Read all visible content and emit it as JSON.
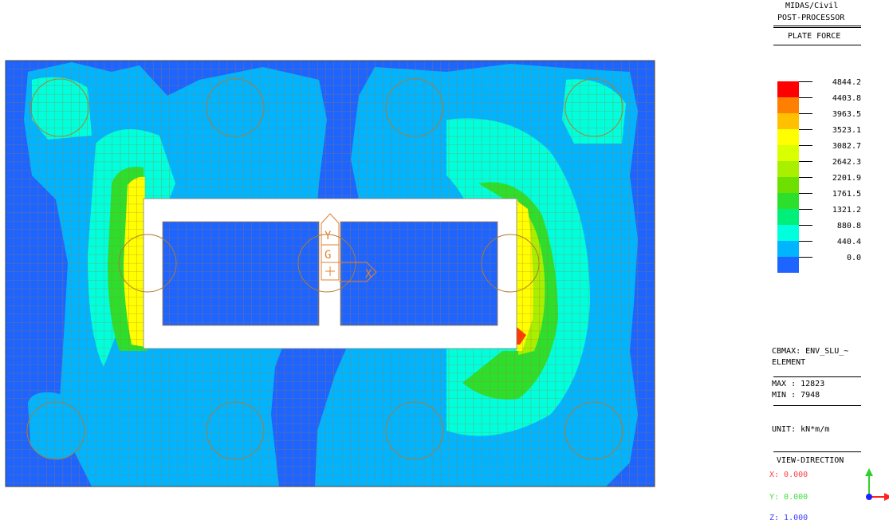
{
  "app": {
    "name": "MIDAS/Civil",
    "module": "POST-PROCESSOR",
    "result_type": "PLATE FORCE"
  },
  "legend": {
    "values": [
      "4844.2",
      "4403.8",
      "3963.5",
      "3523.1",
      "3082.7",
      "2642.3",
      "2201.9",
      "1761.5",
      "1321.2",
      "880.8",
      "440.4",
      "0.0"
    ],
    "colors": [
      "#ff0000",
      "#ff7f00",
      "#ffc000",
      "#ffff00",
      "#d9ff00",
      "#a8f000",
      "#6ee000",
      "#2ddf2d",
      "#00ee7a",
      "#00ffdd",
      "#00b4ff",
      "#1e64ff"
    ]
  },
  "load_case": {
    "label": "CBMAX: ENV_SLU_~",
    "scope": "ELEMENT"
  },
  "extremes": {
    "max": "MAX : 12823",
    "min": "MIN : 7948"
  },
  "unit": "UNIT: kN*m/m",
  "view_direction": {
    "title": "VIEW-DIRECTION",
    "x": "X: 0.000",
    "y": "Y: 0.000",
    "z": "Z: 1.000",
    "x_color": "#ff4040",
    "y_color": "#40e040",
    "z_color": "#4040ff"
  },
  "axis_labels": {
    "y": "Y",
    "g": "G",
    "x": "X"
  },
  "colors": {
    "background": "#ffffff",
    "mesh_line": "#b07a30",
    "deep_blue": "#1e64ff",
    "light_blue": "#00b4ff",
    "cyan": "#00ffdd",
    "green": "#2ddf2d",
    "yellow_green": "#a8f000",
    "yellow": "#ffff00",
    "red": "#ff0000",
    "axis_marker": "#e08030"
  }
}
